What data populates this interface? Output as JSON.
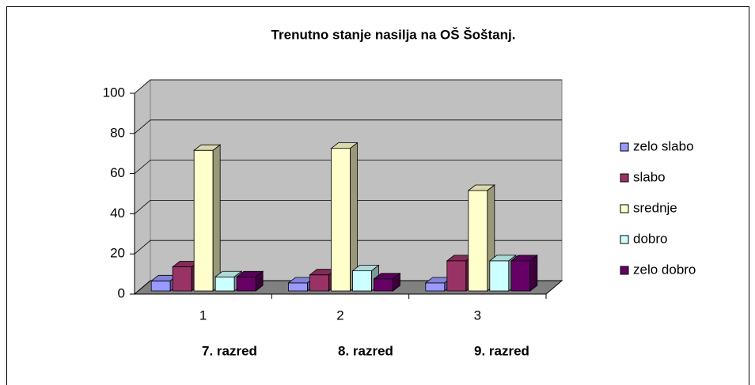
{
  "chart_data": {
    "type": "bar3d",
    "title": "Trenutno stanje nasilja na OŠ Šoštanj.",
    "categories": [
      "1",
      "2",
      "3"
    ],
    "annotations": [
      "7. razred",
      "8. razred",
      "9. razred"
    ],
    "series": [
      {
        "name": "zelo slabo",
        "color": "#9999ff",
        "values": [
          5,
          4,
          4
        ]
      },
      {
        "name": "slabo",
        "color": "#993366",
        "values": [
          12,
          8,
          15
        ]
      },
      {
        "name": "srednje",
        "color": "#ffffcc",
        "values": [
          70,
          71,
          50
        ]
      },
      {
        "name": "dobro",
        "color": "#ccffff",
        "values": [
          7,
          10,
          15
        ]
      },
      {
        "name": "zelo dobro",
        "color": "#660066",
        "values": [
          7,
          6,
          15
        ]
      }
    ],
    "ylim": [
      0,
      100
    ],
    "yticks": [
      0,
      20,
      40,
      60,
      80,
      100
    ],
    "grid": true,
    "legend": "right"
  }
}
